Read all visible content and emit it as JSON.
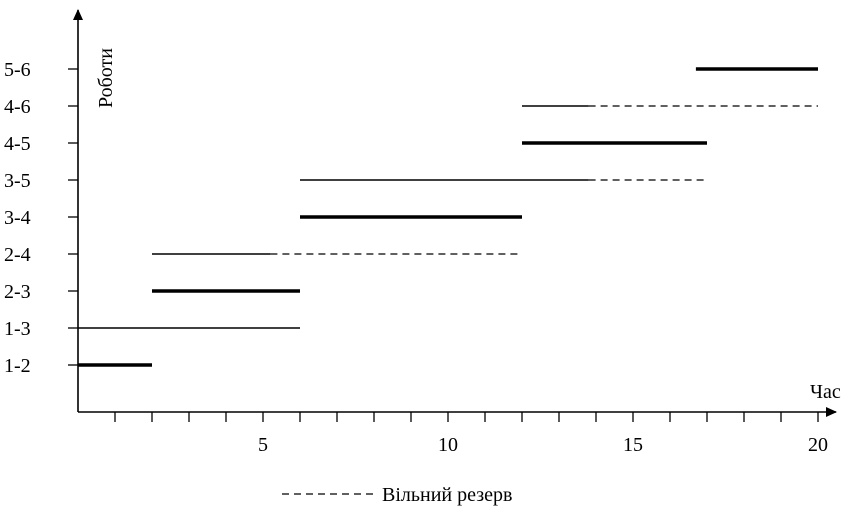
{
  "chart_data": {
    "type": "gantt",
    "ylabel": "Роботи",
    "xlabel": "Час",
    "xlim": [
      0,
      20
    ],
    "x_ticks_labeled": [
      5,
      10,
      15,
      20
    ],
    "x_tick_step": 1,
    "grid": false,
    "categories": [
      "1-2",
      "1-3",
      "2-3",
      "2-4",
      "3-4",
      "3-5",
      "4-5",
      "4-6",
      "5-6"
    ],
    "tasks": [
      {
        "job": "1-2",
        "start": 0,
        "end": 2,
        "critical": true,
        "reserve_end": null
      },
      {
        "job": "1-3",
        "start": 0,
        "end": 6,
        "critical": false,
        "reserve_end": null
      },
      {
        "job": "2-3",
        "start": 2,
        "end": 6,
        "critical": true,
        "reserve_end": null
      },
      {
        "job": "2-4",
        "start": 2,
        "end": 5.2,
        "critical": false,
        "reserve_end": 12
      },
      {
        "job": "3-4",
        "start": 6,
        "end": 12,
        "critical": true,
        "reserve_end": null
      },
      {
        "job": "3-5",
        "start": 6,
        "end": 13.8,
        "critical": false,
        "reserve_end": 17
      },
      {
        "job": "4-5",
        "start": 12,
        "end": 17,
        "critical": true,
        "reserve_end": null
      },
      {
        "job": "4-6",
        "start": 12,
        "end": 13.8,
        "critical": false,
        "reserve_end": 20
      },
      {
        "job": "5-6",
        "start": 16.7,
        "end": 20,
        "critical": true,
        "reserve_end": null
      }
    ],
    "legend": {
      "text": "Вільний резерв",
      "placement": "bottom-center"
    }
  }
}
